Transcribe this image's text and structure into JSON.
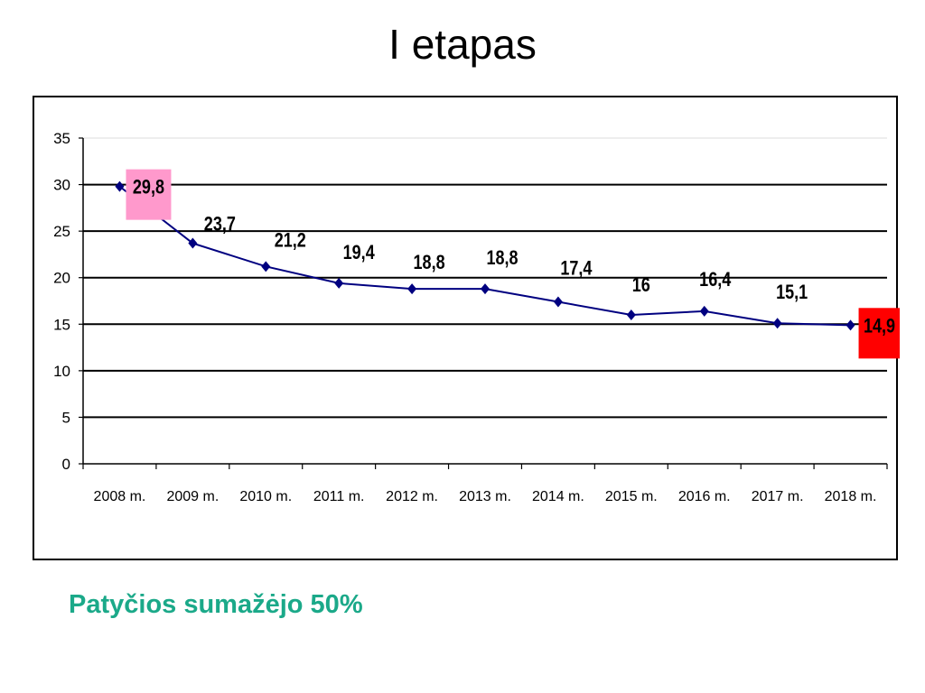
{
  "slide": {
    "title": "I etapas",
    "footer_note": "Patyčios sumažėjo 50%"
  },
  "colors": {
    "series_line": "#000080",
    "marker": "#000080",
    "grid": "#000000",
    "first_label_highlight": "#ff99cc",
    "last_label_highlight": "#ff0000",
    "footer_text": "#1ba989"
  },
  "chart_data": {
    "type": "line",
    "title": "",
    "xlabel": "",
    "ylabel": "",
    "categories": [
      "2008 m.",
      "2009 m.",
      "2010 m.",
      "2011 m.",
      "2012 m.",
      "2013 m.",
      "2014 m.",
      "2015 m.",
      "2016 m.",
      "2017 m.",
      "2018 m."
    ],
    "series": [
      {
        "values": [
          29.8,
          23.7,
          21.2,
          19.4,
          18.8,
          18.8,
          17.4,
          16,
          16.4,
          15.1,
          14.9
        ],
        "data_labels": [
          "29,8",
          "23,7",
          "21,2",
          "19,4",
          "18,8",
          "18,8",
          "17,4",
          "16",
          "16,4",
          "15,1",
          "14,9"
        ]
      }
    ],
    "ylim": [
      0,
      35
    ],
    "yticks": [
      0,
      5,
      10,
      15,
      20,
      25,
      30,
      35
    ],
    "grid": true,
    "legend": "none",
    "highlighted_labels": [
      "first",
      "last"
    ]
  }
}
